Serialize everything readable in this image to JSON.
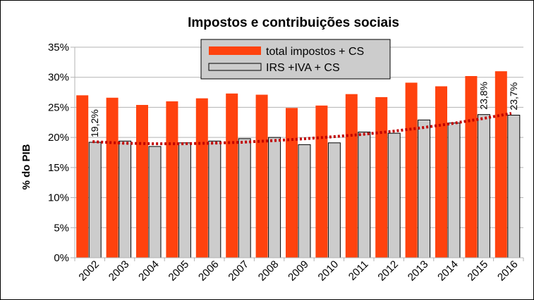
{
  "chart_data": {
    "type": "bar",
    "title": "Impostos e contribuições sociais",
    "xlabel": "",
    "ylabel": "% do PIB",
    "ylim": [
      0,
      35
    ],
    "yticks": [
      "0%",
      "5%",
      "10%",
      "15%",
      "20%",
      "25%",
      "30%",
      "35%"
    ],
    "grid": true,
    "legend_position": "top-center",
    "categories": [
      "2002",
      "2003",
      "2004",
      "2005",
      "2006",
      "2007",
      "2008",
      "2009",
      "2010",
      "2011",
      "2012",
      "2013",
      "2014",
      "2015",
      "2016"
    ],
    "series": [
      {
        "name": "total impostos + CS",
        "color": "#ff420e",
        "values": [
          27.0,
          26.6,
          25.4,
          26.0,
          26.5,
          27.3,
          27.1,
          24.9,
          25.3,
          27.2,
          26.7,
          29.1,
          28.5,
          30.2,
          31.0
        ]
      },
      {
        "name": "IRS +IVA + CS",
        "color": "#cccccc",
        "values": [
          19.2,
          19.4,
          18.5,
          19.1,
          19.4,
          19.8,
          20.0,
          18.8,
          19.1,
          20.9,
          20.7,
          22.9,
          22.4,
          23.8,
          23.7
        ]
      }
    ],
    "trendline": {
      "series": "IRS +IVA + CS",
      "type": "polynomial",
      "color": "#c00000",
      "style": "dotted",
      "values": [
        19.3,
        19.05,
        18.95,
        18.95,
        19.05,
        19.2,
        19.45,
        19.75,
        20.1,
        20.5,
        21.0,
        21.6,
        22.3,
        23.1,
        24.0
      ]
    },
    "data_labels": [
      {
        "category": "2002",
        "text": "19,2%"
      },
      {
        "category": "2015",
        "text": "23,8%"
      },
      {
        "category": "2016",
        "text": "23,7%"
      }
    ]
  }
}
